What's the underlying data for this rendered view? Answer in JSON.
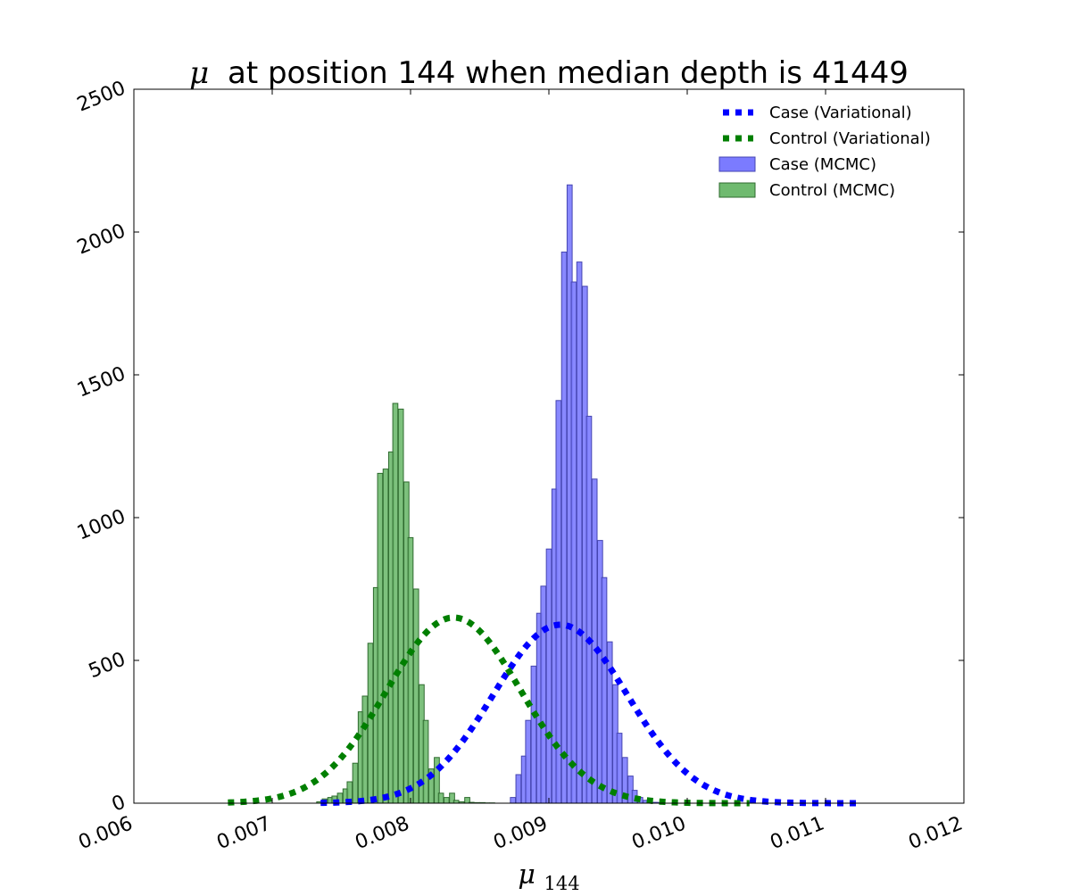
{
  "chart_data": {
    "type": "bar",
    "title": "at position 144 when median depth is 41449",
    "title_symbol": "μ",
    "xlabel": "μ",
    "xlabel_subscript": "144",
    "ylabel": "",
    "xlim": [
      0.006,
      0.012
    ],
    "ylim": [
      0,
      2500
    ],
    "xticks": [
      "0.006",
      "0.007",
      "0.008",
      "0.009",
      "0.010",
      "0.011",
      "0.012"
    ],
    "yticks": [
      "0",
      "500",
      "1000",
      "1500",
      "2000",
      "2500"
    ],
    "legend_position": "top-right",
    "grid": false,
    "bin_width": 3.67e-05,
    "histograms": [
      {
        "name": "Case (MCMC)",
        "color": "#7b7bff",
        "edge_color": "#4545b0",
        "bin_centers": [
          0.00874,
          0.00878,
          0.00882,
          0.00885,
          0.00889,
          0.00893,
          0.00896,
          0.009,
          0.00904,
          0.00907,
          0.00911,
          0.00915,
          0.00918,
          0.00922,
          0.00926,
          0.00929,
          0.00933,
          0.00937,
          0.0094,
          0.00944,
          0.00948,
          0.00951,
          0.00955,
          0.00959,
          0.00962,
          0.00966,
          0.0097,
          0.00973,
          0.00977,
          0.00981
        ],
        "values": [
          20,
          100,
          165,
          290,
          480,
          665,
          760,
          890,
          1100,
          1410,
          1930,
          2165,
          1825,
          1895,
          1810,
          1355,
          1135,
          920,
          790,
          565,
          415,
          245,
          160,
          95,
          45,
          20,
          10,
          5,
          3,
          2
        ]
      },
      {
        "name": "Control (MCMC)",
        "color": "#6fba6f",
        "edge_color": "#2f6b2f",
        "bin_centers": [
          0.00734,
          0.00738,
          0.00742,
          0.00745,
          0.00749,
          0.00753,
          0.00756,
          0.0076,
          0.00764,
          0.00767,
          0.00771,
          0.00775,
          0.00778,
          0.00782,
          0.00786,
          0.00789,
          0.00793,
          0.00797,
          0.008,
          0.00804,
          0.00808,
          0.00811,
          0.00815,
          0.00819,
          0.00822,
          0.00826,
          0.0083,
          0.00833,
          0.00837,
          0.00841,
          0.00844,
          0.00848,
          0.00852,
          0.00855,
          0.00859,
          0.00863,
          0.00867,
          0.0087,
          0.00874,
          0.00878,
          0.00882,
          0.00885,
          0.00889,
          0.00893,
          0.00896,
          0.009,
          0.00904,
          0.00907,
          0.00911,
          0.00915,
          0.00918,
          0.00922,
          0.00926,
          0.00929
        ],
        "values": [
          5,
          15,
          20,
          25,
          35,
          50,
          75,
          140,
          320,
          375,
          560,
          755,
          1155,
          1170,
          1230,
          1400,
          1380,
          1125,
          930,
          750,
          415,
          290,
          120,
          160,
          35,
          20,
          35,
          10,
          5,
          20,
          3,
          2,
          2,
          1,
          1,
          0,
          0,
          0,
          0,
          0,
          0,
          0,
          0,
          0,
          0,
          0,
          0,
          0,
          0,
          0,
          0,
          0,
          0,
          0
        ]
      }
    ],
    "curves": [
      {
        "name": "Case (Variational)",
        "color": "#0000ff",
        "style": "dotted",
        "distribution": "normal",
        "mean": 0.009082,
        "sd": 0.000485,
        "x_range": [
          0.00735,
          0.01125
        ],
        "peak": 625
      },
      {
        "name": "Control (Variational)",
        "color": "#007f00",
        "style": "dotted",
        "distribution": "normal",
        "mean": 0.008312,
        "sd": 0.000485,
        "x_range": [
          0.00668,
          0.01045
        ],
        "peak": 650
      }
    ],
    "legend": [
      "Case (Variational)",
      "Control (Variational)",
      "Case (MCMC)",
      "Control (MCMC)"
    ]
  }
}
